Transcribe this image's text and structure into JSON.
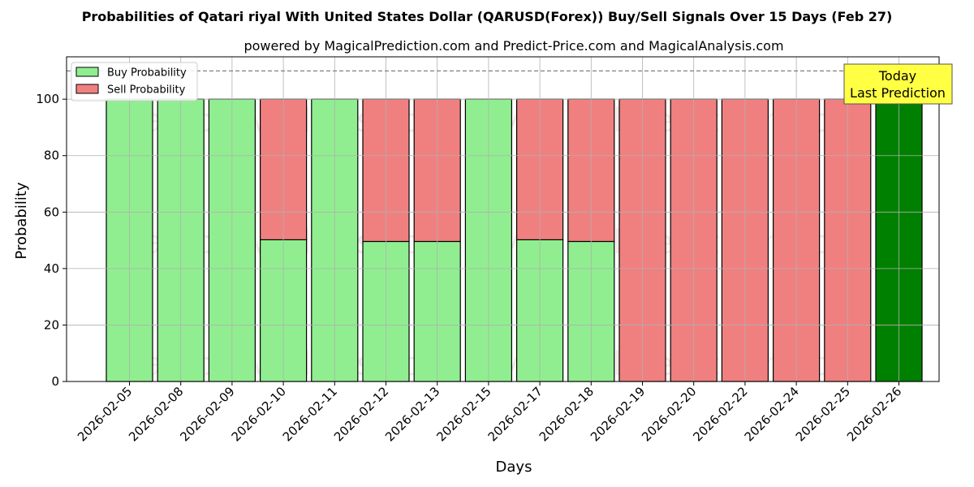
{
  "chart_data": {
    "type": "bar",
    "stacked": true,
    "title": "Probabilities of Qatari riyal With United States Dollar (QARUSD(Forex)) Buy/Sell Signals Over 15 Days (Feb 27)",
    "subtitle": "powered by MagicalPrediction.com and Predict-Price.com and MagicalAnalysis.com",
    "xlabel": "Days",
    "ylabel": "Probability",
    "ylim": [
      0,
      115
    ],
    "yticks": [
      0,
      20,
      40,
      60,
      80,
      100
    ],
    "grid": true,
    "legend_position": "top-left",
    "reference_line": 110,
    "categories": [
      "2026-02-05",
      "2026-02-08",
      "2026-02-09",
      "2026-02-10",
      "2026-02-11",
      "2026-02-12",
      "2026-02-13",
      "2026-02-15",
      "2026-02-17",
      "2026-02-18",
      "2026-02-19",
      "2026-02-20",
      "2026-02-22",
      "2026-02-24",
      "2026-02-25",
      "2026-02-26"
    ],
    "series": [
      {
        "name": "Buy Probability",
        "color": "#90ee90",
        "values": [
          100,
          100,
          100,
          50.2,
          100,
          49.6,
          49.6,
          100,
          50.2,
          49.6,
          0,
          0,
          0,
          0,
          0,
          100
        ]
      },
      {
        "name": "Sell Probability",
        "color": "#f08080",
        "values": [
          0,
          0,
          0,
          49.8,
          0,
          50.4,
          50.4,
          0,
          49.8,
          50.4,
          100,
          100,
          100,
          100,
          100,
          0
        ]
      }
    ],
    "highlight_index": 15,
    "highlight_color": "#008000",
    "annotation": {
      "line1": "Today",
      "line2": "Last Prediction",
      "color": "#ffff44"
    },
    "watermarks": [
      "MagicalAnalysis.com",
      "MagicalPrediction.com"
    ]
  }
}
